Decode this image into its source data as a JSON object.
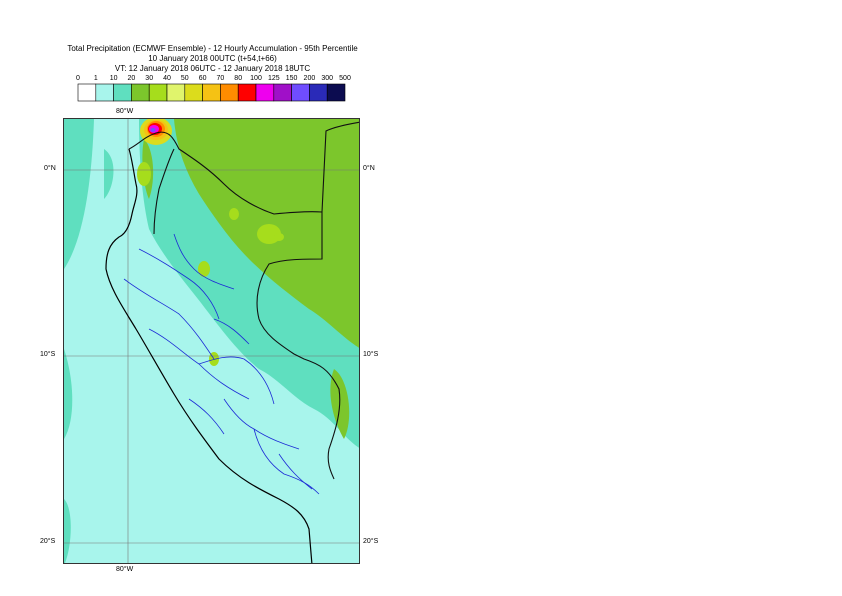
{
  "title": {
    "line1": "Total Precipitation (ECMWF Ensemble) - 12 Hourly Accumulation - 95th Percentile",
    "line2": "10 January 2018 00UTC (t+54,t+66)",
    "line3": "VT: 12 January 2018 06UTC - 12 January 2018 18UTC"
  },
  "legend": {
    "ticks": [
      "0",
      "1",
      "10",
      "20",
      "30",
      "40",
      "50",
      "60",
      "70",
      "80",
      "100",
      "125",
      "150",
      "200",
      "300",
      "500"
    ],
    "colors": [
      "#ffffff",
      "#a8f5ec",
      "#5fdfbf",
      "#7cc62c",
      "#a6dd1c",
      "#e0f46c",
      "#dcdc1c",
      "#f5c214",
      "#ff8c00",
      "#ff0000",
      "#ee00ee",
      "#a010c8",
      "#6f4dff",
      "#2a2ab8",
      "#0c0c50"
    ]
  },
  "map": {
    "lon_labels": {
      "top": "80°W",
      "bottom": "80°W"
    },
    "lat_labels": {
      "eq_left": "0°N",
      "eq_right": "0°N",
      "s10_left": "10°S",
      "s10_right": "10°S",
      "s20_left": "20°S",
      "s20_right": "20°S"
    },
    "colors": {
      "ocean_light": "#a8f5ec",
      "ocean_mid": "#5fdfbf",
      "land_green": "#7cc62c",
      "land_yellow": "#a6dd1c",
      "coast": "#000000",
      "regions": "#0000cc"
    }
  }
}
